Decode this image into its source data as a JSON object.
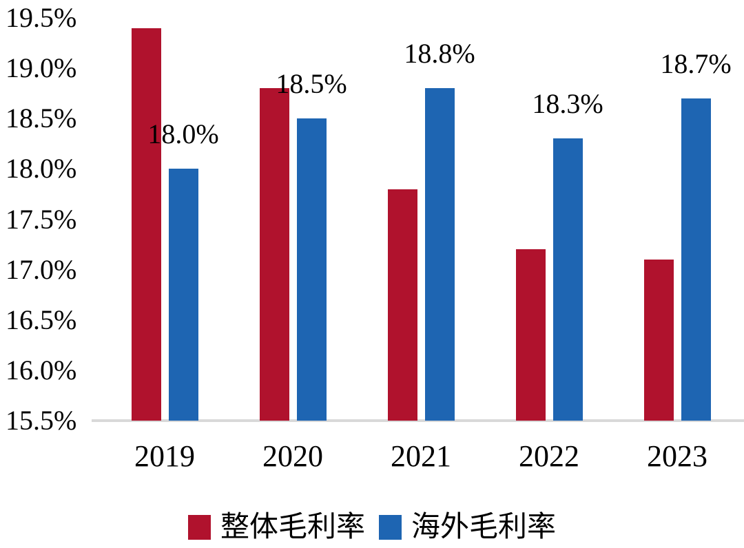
{
  "chart_data": {
    "type": "bar",
    "categories": [
      "2019",
      "2020",
      "2021",
      "2022",
      "2023"
    ],
    "series": [
      {
        "name": "整体毛利率",
        "color": "#B0122D",
        "values": [
          19.4,
          18.8,
          17.8,
          17.2,
          17.1
        ]
      },
      {
        "name": "海外毛利率",
        "color": "#1E65B2",
        "values": [
          18.0,
          18.5,
          18.8,
          18.3,
          18.7
        ],
        "data_labels": [
          "18.0%",
          "18.5%",
          "18.8%",
          "18.3%",
          "18.7%"
        ]
      }
    ],
    "ylim": [
      15.5,
      19.5
    ],
    "ytick_step": 0.5,
    "ytick_labels": [
      "19.5%",
      "19.0%",
      "18.5%",
      "18.0%",
      "17.5%",
      "17.0%",
      "16.5%",
      "16.0%",
      "15.5%"
    ],
    "grid": false,
    "legend_position": "bottom",
    "axis_line_color": "#D9D9D9",
    "background": "#FFFFFF",
    "text_color": "#000000"
  }
}
